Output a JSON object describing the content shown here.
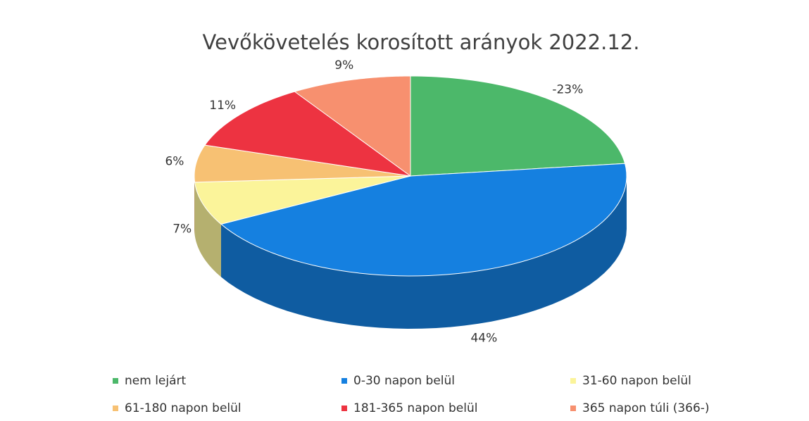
{
  "chart_data": {
    "type": "pie",
    "title": "Vevőkövetelés korosított arányok 2022.12.",
    "categories": [
      "nem lejárt",
      "0-30 napon belül",
      "31-60 napon belül",
      "61-180 napon belül",
      "181-365 napon belül",
      "365 napon túli (366-)"
    ],
    "values": [
      -23,
      44,
      7,
      6,
      11,
      9
    ],
    "value_labels": [
      "-23%",
      "44%",
      "7%",
      "6%",
      "11%",
      "9%"
    ],
    "colors": [
      "#4cb86a",
      "#1580e0",
      "#fbf49a",
      "#f7c173",
      "#ed3341",
      "#f7906f"
    ]
  }
}
